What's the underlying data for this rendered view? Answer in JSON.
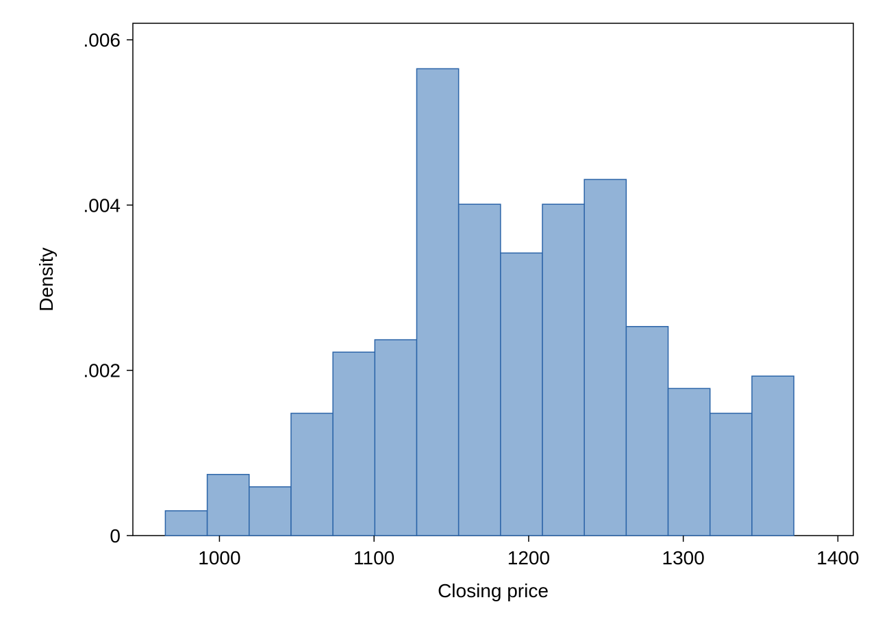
{
  "chart_data": {
    "type": "bar",
    "title": "",
    "xlabel": "Closing price",
    "ylabel": "Density",
    "bin_edges": [
      965,
      992.1,
      1019.2,
      1046.3,
      1073.4,
      1100.5,
      1127.6,
      1154.7,
      1181.8,
      1208.9,
      1236,
      1263.1,
      1290.2,
      1317.3,
      1344.4,
      1371.5
    ],
    "values": [
      0.0003,
      0.00074,
      0.00059,
      0.00148,
      0.00222,
      0.00237,
      0.00565,
      0.00401,
      0.00342,
      0.00401,
      0.00431,
      0.00253,
      0.00178,
      0.00148,
      0.00193
    ],
    "xlim": [
      944,
      1410
    ],
    "ylim": [
      0,
      0.0062
    ],
    "x_ticks": [
      1000,
      1100,
      1200,
      1300,
      1400
    ],
    "x_tick_labels": [
      "1000",
      "1100",
      "1200",
      "1300",
      "1400"
    ],
    "y_ticks": [
      0,
      0.002,
      0.004,
      0.006
    ],
    "y_tick_labels": [
      "0",
      ".002",
      ".004",
      ".006"
    ],
    "grid": false,
    "legend": "none",
    "bar_fill": "#92B3D7",
    "bar_stroke": "#2B64A8"
  }
}
